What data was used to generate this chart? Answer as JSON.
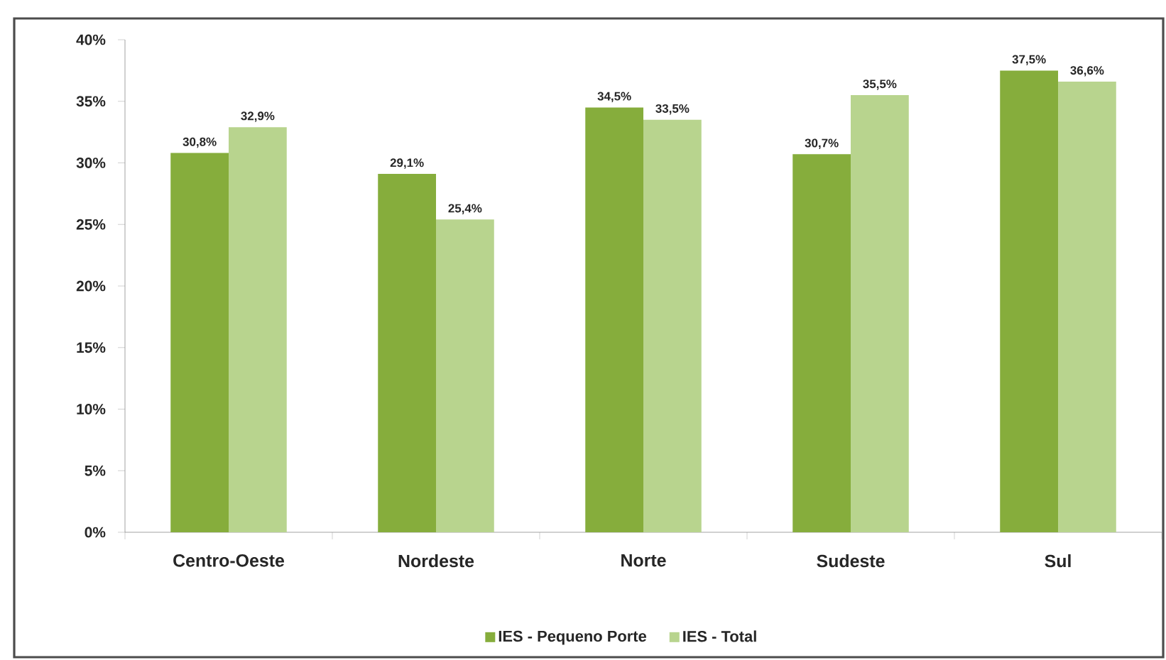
{
  "chart_data": {
    "type": "bar",
    "categories": [
      "Centro-Oeste",
      "Nordeste",
      "Norte",
      "Sudeste",
      "Sul"
    ],
    "series": [
      {
        "name": "IES - Pequeno Porte",
        "color": "#86ad3c",
        "values": [
          30.8,
          29.1,
          34.5,
          30.7,
          37.5
        ],
        "value_labels": [
          "30,8%",
          "29,1%",
          "34,5%",
          "30,7%",
          "37,5%"
        ]
      },
      {
        "name": "IES - Total",
        "color": "#b8d48e",
        "values": [
          32.9,
          25.4,
          33.5,
          35.5,
          36.6
        ],
        "value_labels": [
          "32,9%",
          "25,4%",
          "33,5%",
          "35,5%",
          "36,6%"
        ]
      }
    ],
    "ylim": [
      0,
      40
    ],
    "yticks": [
      {
        "value": 0,
        "label": "0%"
      },
      {
        "value": 5,
        "label": "5%"
      },
      {
        "value": 10,
        "label": "10%"
      },
      {
        "value": 15,
        "label": "15%"
      },
      {
        "value": 20,
        "label": "20%"
      },
      {
        "value": 25,
        "label": "25%"
      },
      {
        "value": 30,
        "label": "30%"
      },
      {
        "value": 35,
        "label": "35%"
      },
      {
        "value": 40,
        "label": "40%"
      }
    ],
    "legend": "bottom"
  }
}
